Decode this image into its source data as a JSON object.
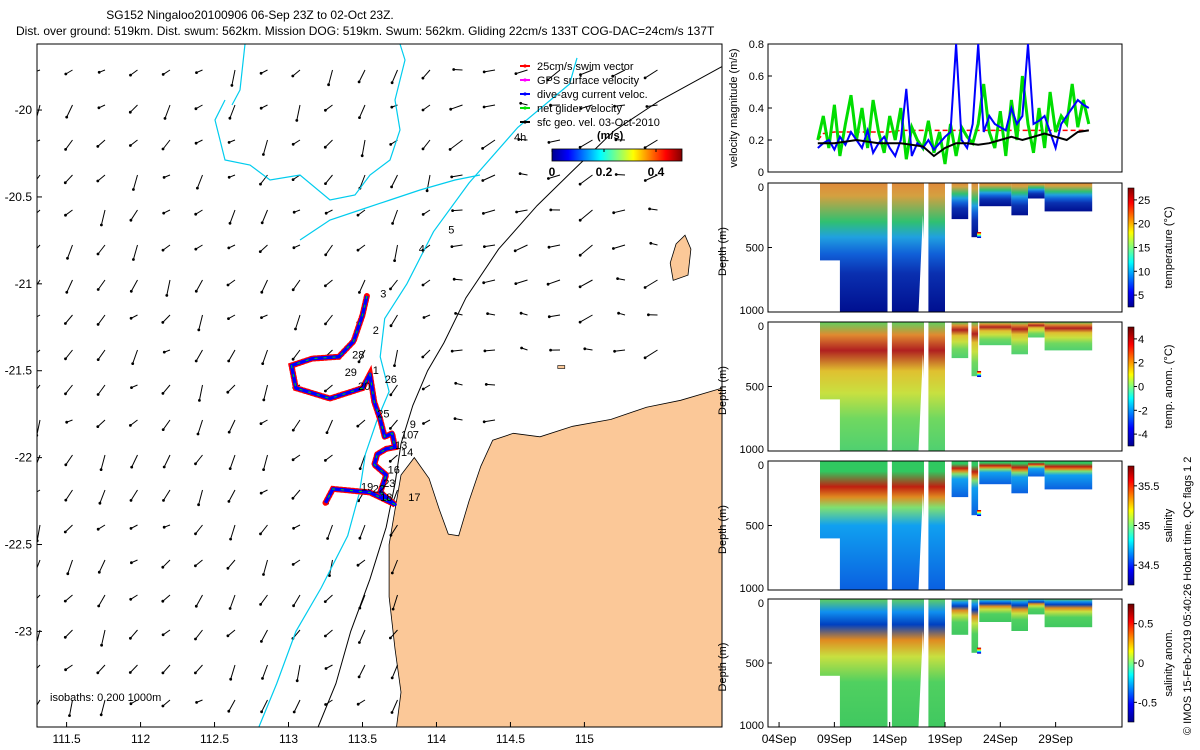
{
  "header": {
    "title_line1": "SG152 Ningaloo20100906 06-Sep 23Z to 02-Oct 23Z.",
    "title_line2": "Dist. over ground: 519km. Dist. swum: 562km. Mission DOG: 519km. Swum: 562km. Gliding 22cm/s 133T COG-DAC=24cm/s 137T"
  },
  "credit": "© IMOS 15-Feb-2019 05:40:26 Hobart time. QC flags 1  2",
  "map": {
    "legend": [
      {
        "label": "25cm/s swim vector",
        "color": "#ff0000"
      },
      {
        "label": "GPS surface velocity",
        "color": "#ff00ff"
      },
      {
        "label": "dive-avg current veloc.",
        "color": "#0000ff"
      },
      {
        "label": "net glider velocity",
        "color": "#00dd00"
      },
      {
        "label": "sfc geo. vel. 03-Oct-2010",
        "color": "#000000"
      }
    ],
    "colorbar": {
      "label": "(m/s)",
      "note": "4h",
      "ticks": [
        "0",
        "0.2",
        "0.4"
      ],
      "range": [
        0,
        0.5
      ]
    },
    "isobath_note": "isobaths: 0   200  1000m",
    "day_labels": [
      {
        "text": "2",
        "lon": 113.57,
        "lat": -21.29
      },
      {
        "text": "3",
        "lon": 113.62,
        "lat": -21.08
      },
      {
        "text": "4",
        "lon": 113.88,
        "lat": -20.82
      },
      {
        "text": "5",
        "lon": 114.08,
        "lat": -20.71
      },
      {
        "text": "7",
        "lon": 113.84,
        "lat": -21.89
      },
      {
        "text": "10",
        "lon": 113.76,
        "lat": -21.89
      },
      {
        "text": "13",
        "lon": 113.72,
        "lat": -21.95
      },
      {
        "text": "14",
        "lon": 113.76,
        "lat": -21.99
      },
      {
        "text": "16",
        "lon": 113.67,
        "lat": -22.09
      },
      {
        "text": "17",
        "lon": 113.81,
        "lat": -22.25
      },
      {
        "text": "18",
        "lon": 113.62,
        "lat": -22.25
      },
      {
        "text": "20",
        "lon": 113.47,
        "lat": -21.61
      },
      {
        "text": "22",
        "lon": 113.57,
        "lat": -22.2
      },
      {
        "text": "23",
        "lon": 113.64,
        "lat": -22.17
      },
      {
        "text": "25",
        "lon": 113.6,
        "lat": -21.77
      },
      {
        "text": "26",
        "lon": 113.65,
        "lat": -21.57
      },
      {
        "text": "28",
        "lon": 113.43,
        "lat": -21.43
      },
      {
        "text": "29",
        "lon": 113.38,
        "lat": -21.53
      },
      {
        "text": "1",
        "lon": 113.57,
        "lat": -21.52
      },
      {
        "text": "9",
        "lon": 113.82,
        "lat": -21.83
      },
      {
        "text": "19",
        "lon": 113.49,
        "lat": -22.19
      }
    ]
  },
  "chart_data": [
    {
      "type": "line",
      "title": "glider track map",
      "xlabel": "",
      "ylabel": "",
      "xlim": [
        111.3,
        115.93
      ],
      "ylim": [
        -23.55,
        -19.62
      ],
      "xticks": [
        111.5,
        112,
        112.5,
        113,
        113.5,
        114,
        114.5,
        115
      ],
      "yticks": [
        -20,
        -20.5,
        -21,
        -21.5,
        -22,
        -22.5,
        -23
      ],
      "series": [
        {
          "name": "glider track",
          "points": [
            [
              113.53,
              -21.07
            ],
            [
              113.5,
              -21.18
            ],
            [
              113.44,
              -21.33
            ],
            [
              113.34,
              -21.42
            ],
            [
              113.16,
              -21.43
            ],
            [
              113.02,
              -21.47
            ],
            [
              113.05,
              -21.6
            ],
            [
              113.28,
              -21.66
            ],
            [
              113.5,
              -21.6
            ],
            [
              113.55,
              -21.52
            ],
            [
              113.58,
              -21.68
            ],
            [
              113.62,
              -21.78
            ],
            [
              113.65,
              -21.88
            ],
            [
              113.7,
              -21.86
            ],
            [
              113.72,
              -21.94
            ],
            [
              113.66,
              -21.95
            ],
            [
              113.6,
              -21.98
            ],
            [
              113.58,
              -22.04
            ],
            [
              113.66,
              -22.1
            ],
            [
              113.62,
              -22.2
            ],
            [
              113.72,
              -22.27
            ],
            [
              113.55,
              -22.2
            ],
            [
              113.3,
              -22.18
            ],
            [
              113.25,
              -22.26
            ]
          ]
        },
        {
          "name": "coastline",
          "points": [
            [
              115.93,
              -21.6
            ],
            [
              115.65,
              -21.67
            ],
            [
              115.42,
              -21.71
            ],
            [
              115.18,
              -21.78
            ],
            [
              114.92,
              -21.82
            ],
            [
              114.7,
              -21.88
            ],
            [
              114.52,
              -21.86
            ],
            [
              114.38,
              -21.9
            ],
            [
              114.3,
              -22.05
            ],
            [
              114.22,
              -22.25
            ],
            [
              114.15,
              -22.45
            ],
            [
              114.08,
              -22.44
            ],
            [
              114.02,
              -22.3
            ],
            [
              113.95,
              -22.12
            ],
            [
              113.85,
              -22.0
            ],
            [
              113.76,
              -22.1
            ],
            [
              113.72,
              -22.3
            ],
            [
              113.68,
              -22.5
            ],
            [
              113.68,
              -22.8
            ],
            [
              113.72,
              -23.1
            ],
            [
              113.76,
              -23.35
            ],
            [
              113.73,
              -23.55
            ]
          ]
        },
        {
          "name": "isobath 200m",
          "points": [
            [
              115.93,
              -19.75
            ],
            [
              115.5,
              -19.95
            ],
            [
              115.2,
              -20.12
            ],
            [
              114.92,
              -20.35
            ],
            [
              114.68,
              -20.55
            ],
            [
              114.42,
              -20.8
            ],
            [
              114.2,
              -21.08
            ],
            [
              114.05,
              -21.34
            ],
            [
              113.94,
              -21.5
            ],
            [
              113.84,
              -21.7
            ],
            [
              113.76,
              -21.92
            ],
            [
              113.72,
              -22.15
            ],
            [
              113.66,
              -22.4
            ],
            [
              113.55,
              -22.7
            ],
            [
              113.42,
              -23.0
            ],
            [
              113.32,
              -23.3
            ],
            [
              113.2,
              -23.55
            ]
          ]
        },
        {
          "name": "isobath 1000m",
          "points": [
            [
              114.95,
              -19.7
            ],
            [
              114.9,
              -19.85
            ],
            [
              114.55,
              -20.1
            ],
            [
              114.22,
              -20.42
            ],
            [
              113.98,
              -20.7
            ],
            [
              113.8,
              -21.0
            ],
            [
              113.65,
              -21.2
            ],
            [
              113.62,
              -21.42
            ],
            [
              113.68,
              -21.62
            ],
            [
              113.6,
              -21.78
            ],
            [
              113.52,
              -21.98
            ],
            [
              113.48,
              -22.2
            ],
            [
              113.4,
              -22.45
            ],
            [
              113.22,
              -22.75
            ],
            [
              113.05,
              -23.0
            ],
            [
              112.92,
              -23.3
            ],
            [
              112.8,
              -23.55
            ]
          ]
        }
      ]
    },
    {
      "type": "line",
      "title": "velocity magnitude",
      "ylabel": "velocity magnitude (m/s)",
      "xlabel": "",
      "ylim": [
        0,
        0.8
      ],
      "yticks": [
        "0",
        "0.2",
        "0.4",
        "0.6",
        "0.8"
      ],
      "series": [
        {
          "name": "swim vector",
          "x": [
            7.5,
            8,
            9,
            10,
            11,
            12,
            13,
            14,
            15,
            16,
            17,
            18,
            19,
            20,
            21,
            22,
            23,
            24,
            25,
            26,
            27,
            28,
            29,
            30,
            31,
            32
          ],
          "values": [
            0.2,
            0.24,
            0.25,
            0.25,
            0.25,
            0.25,
            0.25,
            0.25,
            0.26,
            0.26,
            0.26,
            0.26,
            0.26,
            0.26,
            0.26,
            0.26,
            0.26,
            0.26,
            0.26,
            0.26,
            0.26,
            0.26,
            0.26,
            0.26,
            0.26,
            0.26
          ]
        },
        {
          "name": "net glider velocity",
          "x": [
            7.5,
            8,
            8.5,
            9,
            9.5,
            10,
            10.5,
            11,
            11.5,
            12,
            12.5,
            13,
            13.5,
            14,
            14.5,
            15,
            15.5,
            16,
            16.5,
            17,
            17.5,
            18,
            18.5,
            19,
            19.5,
            20,
            20.5,
            21,
            21.5,
            22,
            22.5,
            23,
            23.5,
            24,
            24.5,
            25,
            25.5,
            26,
            26.5,
            27,
            27.5,
            28,
            28.5,
            29,
            29.5,
            30,
            30.5,
            31,
            31.5,
            32
          ],
          "values": [
            0.2,
            0.35,
            0.15,
            0.42,
            0.1,
            0.3,
            0.48,
            0.2,
            0.4,
            0.15,
            0.45,
            0.25,
            0.12,
            0.35,
            0.2,
            0.4,
            0.08,
            0.28,
            0.2,
            0.15,
            0.32,
            0.12,
            0.25,
            0.05,
            0.3,
            0.1,
            0.28,
            0.22,
            0.18,
            0.3,
            0.55,
            0.25,
            0.15,
            0.38,
            0.1,
            0.45,
            0.2,
            0.6,
            0.3,
            0.12,
            0.4,
            0.15,
            0.5,
            0.25,
            0.35,
            0.3,
            0.55,
            0.28,
            0.45,
            0.3
          ]
        },
        {
          "name": "dive-avg current",
          "x": [
            7.5,
            8,
            8.5,
            9,
            9.5,
            10,
            10.5,
            11,
            11.5,
            12,
            12.5,
            13,
            13.5,
            14,
            14.5,
            15,
            15.5,
            16,
            16.5,
            17,
            17.5,
            18,
            18.5,
            19,
            19.5,
            20,
            20.5,
            21,
            21.5,
            22,
            22.5,
            23,
            23.5,
            24,
            24.5,
            25,
            25.5,
            26,
            26.5,
            27,
            27.5,
            28,
            28.5,
            29,
            29.5,
            30,
            30.5,
            31,
            31.5,
            32
          ],
          "values": [
            0.15,
            0.18,
            0.2,
            0.14,
            0.22,
            0.17,
            0.25,
            0.2,
            0.15,
            0.26,
            0.12,
            0.18,
            0.22,
            0.15,
            0.1,
            0.2,
            0.52,
            0.1,
            0.18,
            0.15,
            0.2,
            0.14,
            0.18,
            0.22,
            0.25,
            0.8,
            0.2,
            0.15,
            0.3,
            0.8,
            0.25,
            0.35,
            0.3,
            0.28,
            0.26,
            0.4,
            0.3,
            0.35,
            0.8,
            0.3,
            0.32,
            0.35,
            0.25,
            0.15,
            0.3,
            0.35,
            0.4,
            0.45,
            0.42,
            0.4
          ]
        },
        {
          "name": "sfc geo. vel.",
          "x": [
            7.5,
            9,
            11,
            13,
            15,
            17,
            18,
            19,
            20,
            21,
            22,
            23,
            24,
            25,
            26,
            27,
            28,
            29,
            30,
            31,
            32
          ],
          "values": [
            0.18,
            0.18,
            0.2,
            0.18,
            0.18,
            0.16,
            0.1,
            0.15,
            0.18,
            0.18,
            0.17,
            0.18,
            0.2,
            0.22,
            0.2,
            0.22,
            0.24,
            0.22,
            0.2,
            0.25,
            0.26
          ]
        }
      ]
    },
    {
      "type": "heatmap",
      "title": "temperature",
      "ylabel": "Depth (m)",
      "cbar_label": "temperature (°C)",
      "cbar_ticks": [
        "5",
        "10",
        "15",
        "20",
        "25"
      ],
      "ylim": [
        0,
        1000
      ],
      "yticks": [
        "0",
        "500",
        "1000"
      ],
      "profile": "temperature"
    },
    {
      "type": "heatmap",
      "title": "temperature anomaly",
      "ylabel": "Depth (m)",
      "cbar_label": "temp. anom. (°C)",
      "cbar_ticks": [
        "-4",
        "-2",
        "0",
        "2",
        "4"
      ],
      "ylim": [
        0,
        1000
      ],
      "yticks": [
        "0",
        "500",
        "1000"
      ],
      "profile": "tempanom"
    },
    {
      "type": "heatmap",
      "title": "salinity",
      "ylabel": "Depth (m)",
      "cbar_label": "salinity",
      "cbar_ticks": [
        "34.5",
        "35",
        "35.5"
      ],
      "ylim": [
        0,
        1000
      ],
      "yticks": [
        "0",
        "500",
        "1000"
      ],
      "profile": "salinity"
    },
    {
      "type": "heatmap",
      "title": "salinity anomaly",
      "ylabel": "Depth (m)",
      "cbar_label": "salinity anom.",
      "cbar_ticks": [
        "-0.5",
        "0",
        "0.5"
      ],
      "ylim": [
        0,
        1000
      ],
      "yticks": [
        "0",
        "500",
        "1000"
      ],
      "profile": "salanom",
      "xticks": [
        "04Sep",
        "09Sep",
        "14Sep",
        "19Sep",
        "24Sep",
        "29Sep"
      ],
      "xtick_days": [
        4,
        9,
        14,
        19,
        24,
        29
      ],
      "xlim": [
        3,
        35
      ]
    }
  ],
  "series_colors": {
    "swim": "#ff0000",
    "gps": "#ff00ff",
    "dac": "#0000ff",
    "net": "#00dd00",
    "geo": "#000000",
    "land": "#fbc898",
    "isobath200": "#000000",
    "isobath1000": "#00ccee"
  }
}
